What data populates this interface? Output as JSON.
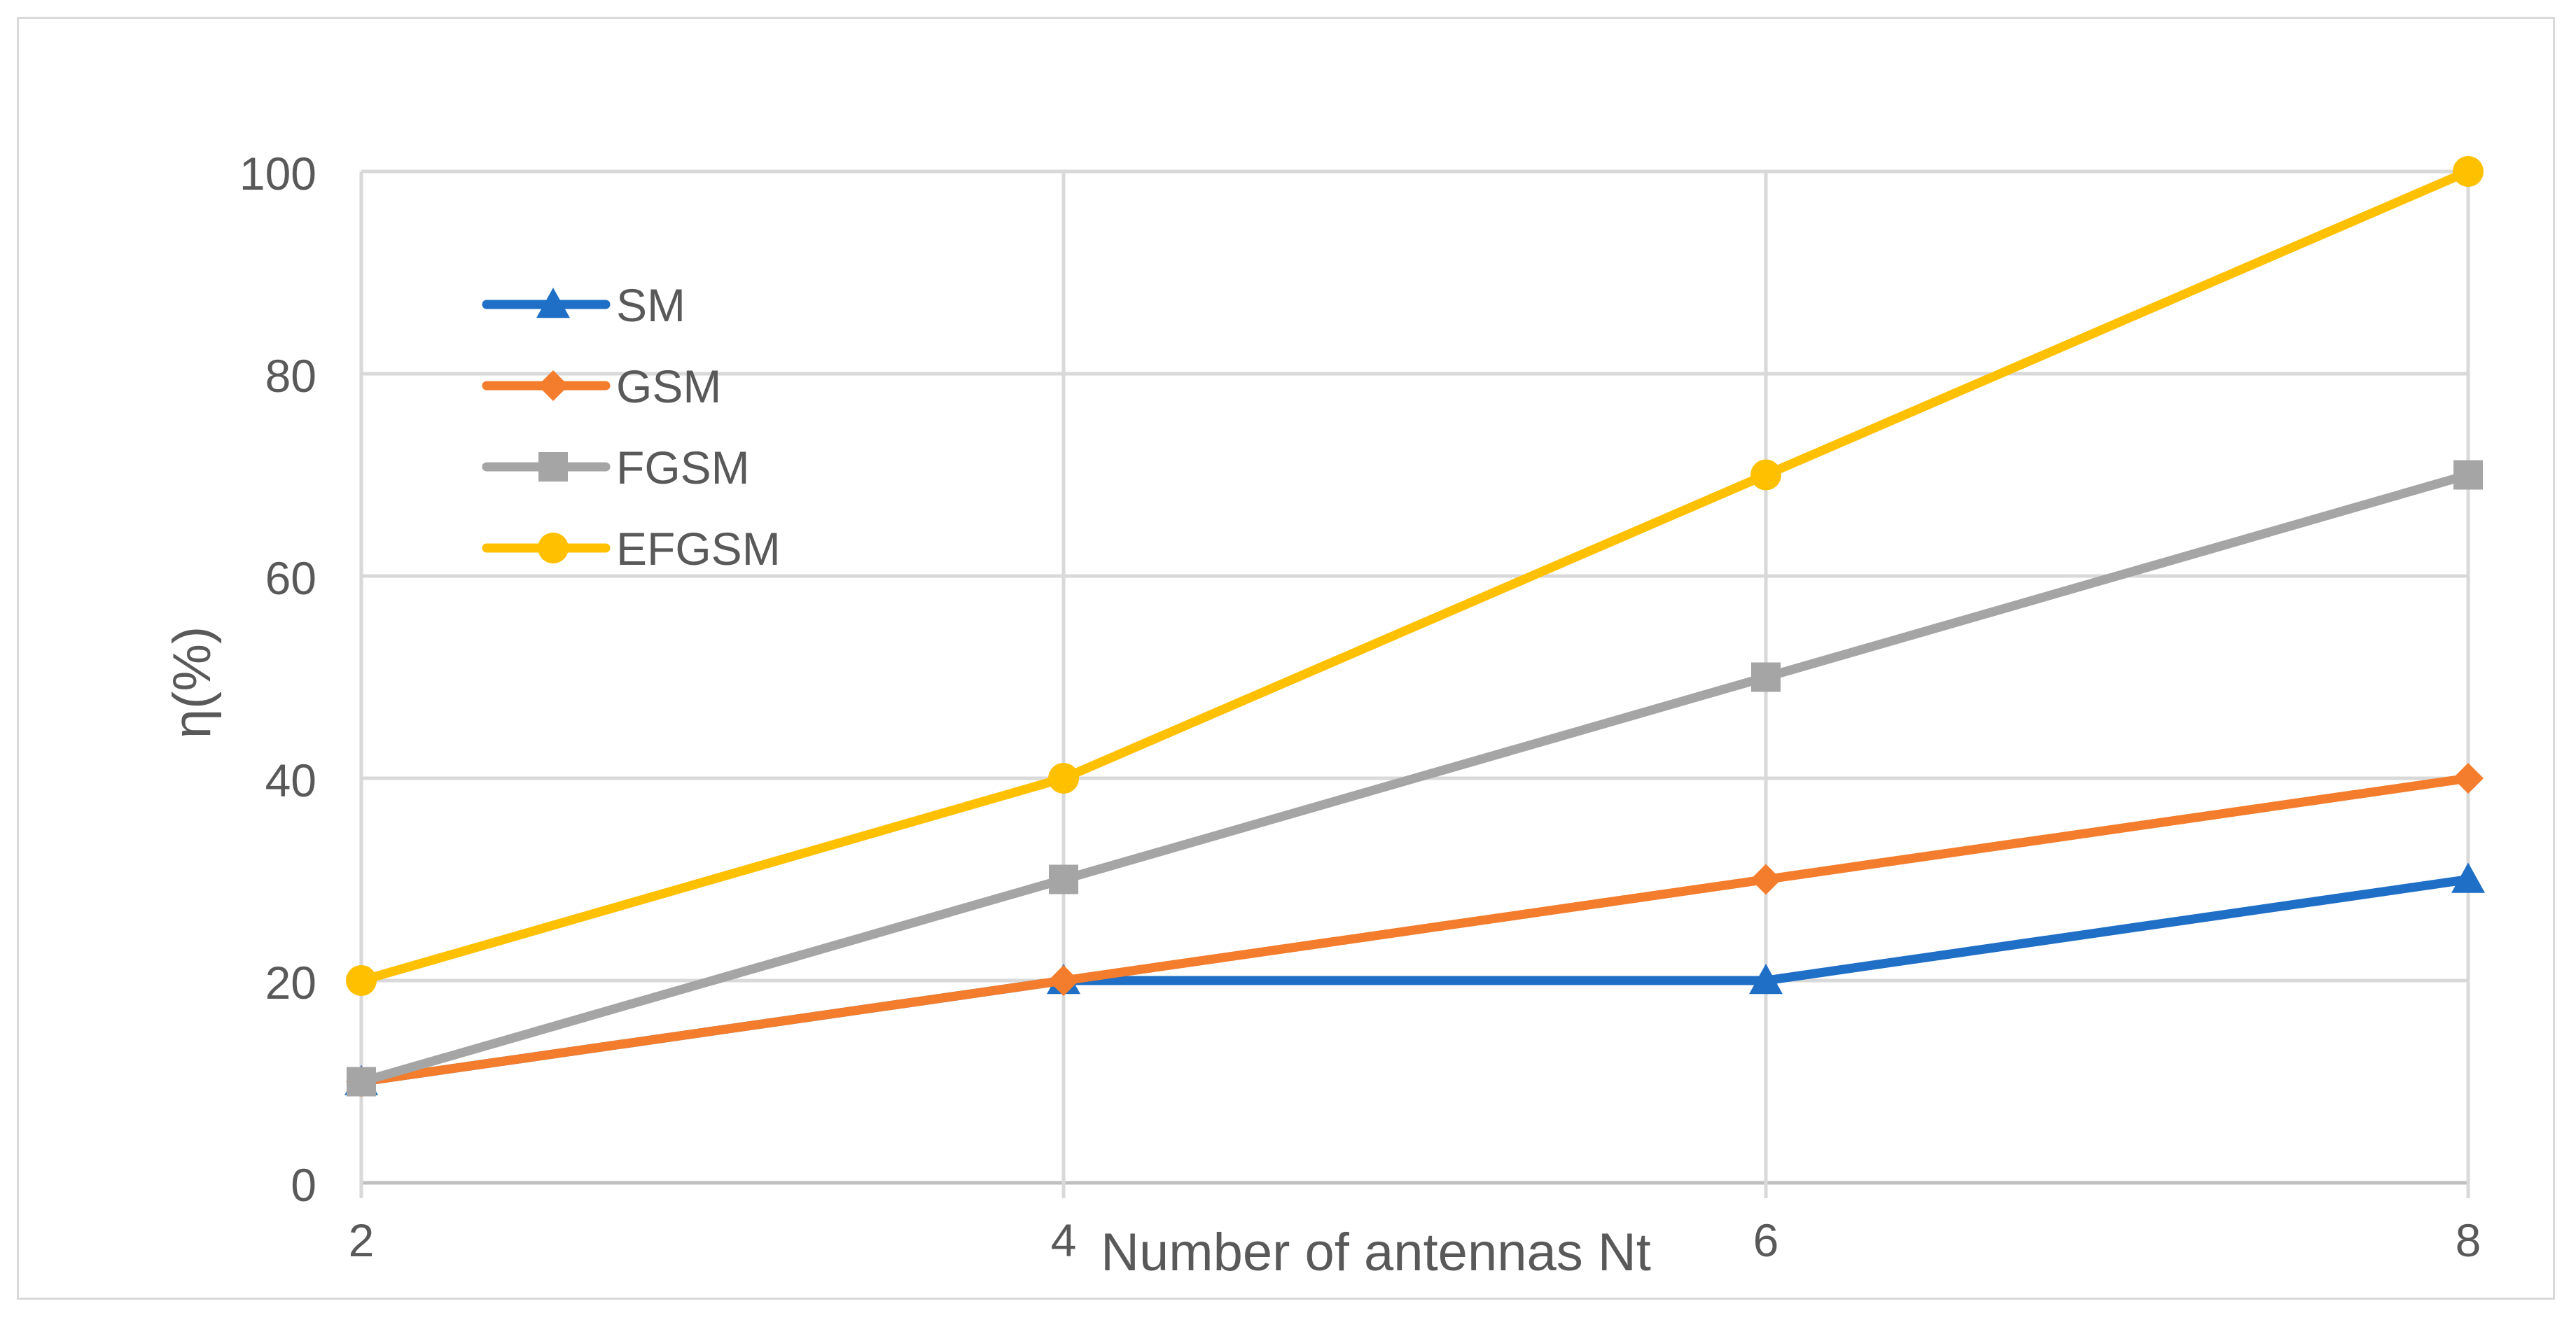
{
  "chart_data": {
    "type": "line",
    "title": "",
    "xlabel": "Number of antennas Nt",
    "ylabel": "η(%)",
    "categories": [
      "2",
      "4",
      "6",
      "8"
    ],
    "x": [
      2,
      4,
      6,
      8
    ],
    "ylim": [
      0,
      100
    ],
    "yticks": [
      "0",
      "20",
      "40",
      "60",
      "80",
      "100"
    ],
    "grid": true,
    "legend_position": "top-left",
    "series": [
      {
        "name": "SM",
        "values": [
          10,
          20,
          20,
          30
        ],
        "color": "#1f6fc6",
        "marker": "triangle"
      },
      {
        "name": "GSM",
        "values": [
          10,
          20,
          30,
          40
        ],
        "color": "#f37d2c",
        "marker": "diamond"
      },
      {
        "name": "FGSM",
        "values": [
          10,
          30,
          50,
          70
        ],
        "color": "#a5a5a5",
        "marker": "square"
      },
      {
        "name": "EFGSM",
        "values": [
          20,
          40,
          70,
          100
        ],
        "color": "#ffc000",
        "marker": "circle"
      }
    ]
  }
}
